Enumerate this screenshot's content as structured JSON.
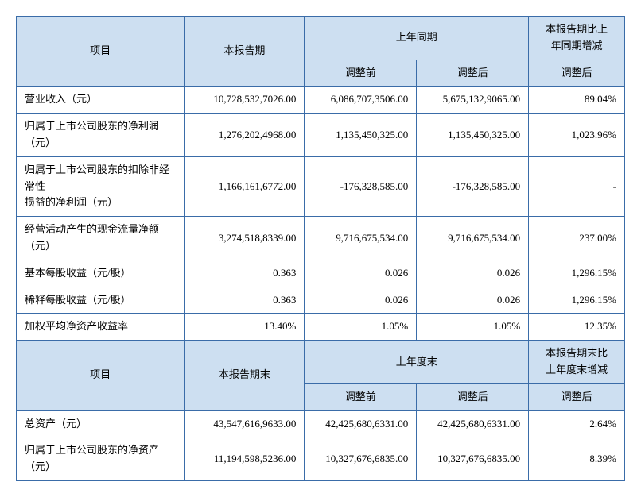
{
  "colors": {
    "header_bg": "#cddff1",
    "border": "#3a6ca8",
    "text": "#000000",
    "bg": "#ffffff"
  },
  "typography": {
    "font_family": "SimSun",
    "font_size_pt": 10,
    "line_height": 1.6
  },
  "table": {
    "header1": {
      "item": "项目",
      "current": "本报告期",
      "prior_period": "上年同期",
      "change": "本报告期比上\n年同期增减",
      "before_adj": "调整前",
      "after_adj": "调整后",
      "change_after": "调整后"
    },
    "rows1": [
      {
        "label": "营业收入（元）",
        "current": "10,728,532,702,6.00",
        "before": "6,086,707,350,6.00",
        "after": "5,675,132,906,5.00",
        "change": "89.04%",
        "disp": {
          "current": "10,728,532,7026.00",
          "before": "6,086,707,3506.00",
          "after": "5,675,132,9065.00"
        }
      },
      {
        "label": "归属于上市公司股东的净利润（元）",
        "current": "1,276,202,4968.00",
        "before": "1,135,450,325.00",
        "after": "1,135,450,325.00",
        "change": "1,023.96%"
      },
      {
        "label": "归属于上市公司股东的扣除非经常性\n损益的净利润（元）",
        "current": "1,166,161,6772.00",
        "before": "-176,328,585.00",
        "after": "-176,328,585.00",
        "change": "-"
      },
      {
        "label": "经营活动产生的现金流量净额（元）",
        "current": "3,274,518,8339.00",
        "before": "9,716,675,534.00",
        "after": "9,716,675,534.00",
        "change": "237.00%"
      },
      {
        "label": "基本每股收益（元/股）",
        "current": "0.363",
        "before": "0.026",
        "after": "0.026",
        "change": "1,296.15%"
      },
      {
        "label": "稀释每股收益（元/股）",
        "current": "0.363",
        "before": "0.026",
        "after": "0.026",
        "change": "1,296.15%"
      },
      {
        "label": "加权平均净资产收益率",
        "current": "13.40%",
        "before": "1.05%",
        "after": "1.05%",
        "change": "12.35%"
      }
    ],
    "header2": {
      "item": "项目",
      "current": "本报告期末",
      "prior_period": "上年度末",
      "change": "本报告期末比\n上年度末增减",
      "before_adj": "调整前",
      "after_adj": "调整后",
      "change_after": "调整后"
    },
    "rows2": [
      {
        "label": "总资产（元）",
        "current": "43,547,616,9633.00",
        "before": "42,425,680,6331.00",
        "after": "42,425,680,6331.00",
        "change": "2.64%"
      },
      {
        "label": "归属于上市公司股东的净资产（元）",
        "current": "11,194,598,5236.00",
        "before": "10,327,676,6835.00",
        "after": "10,327,676,6835.00",
        "change": "8.39%"
      }
    ]
  }
}
